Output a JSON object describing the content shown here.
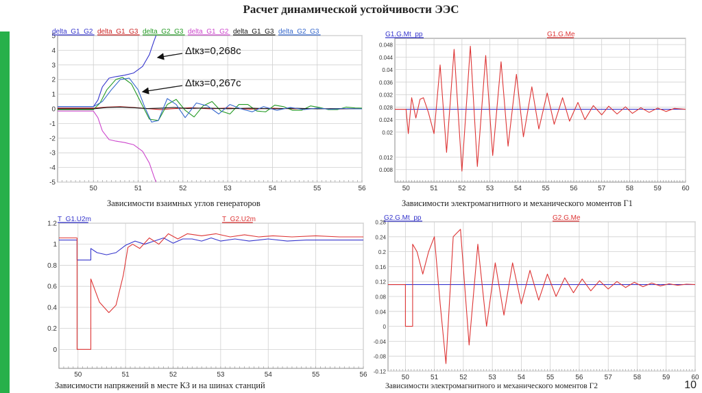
{
  "slide": {
    "title": "Расчет динамической устойчивости ЭЭС",
    "page_number": "10",
    "accent_color": "#27b04a"
  },
  "chart_data": [
    {
      "type": "line",
      "caption": "Зависимости взаимных углов генераторов",
      "xlim": [
        49.2,
        56
      ],
      "ylim": [
        -5,
        5
      ],
      "xticks": [
        50,
        51,
        52,
        53,
        54,
        55,
        56
      ],
      "yticks": [
        -5,
        -4,
        -3,
        -2,
        -1,
        0,
        1,
        2,
        3,
        4,
        5
      ],
      "grid": true,
      "legend_position": "top-left",
      "annotations": [
        "Δtкз=0,268с",
        "Δtкз=0,267с"
      ],
      "series": [
        {
          "name": "delta_G1_G2",
          "color": "#3333cc",
          "x": [
            49.2,
            50.0,
            50.1,
            50.2,
            50.35,
            50.5,
            50.7,
            50.9,
            51.1,
            51.25,
            51.35,
            51.4
          ],
          "y": [
            0.15,
            0.15,
            0.6,
            1.5,
            2.1,
            2.2,
            2.3,
            2.45,
            2.9,
            3.7,
            4.6,
            5.0
          ]
        },
        {
          "name": "delta_G1_G3",
          "color": "#cc2222",
          "x": [
            49.2,
            50.0,
            50.3,
            50.6,
            50.9,
            51.2,
            51.5,
            51.8,
            52.2,
            52.6,
            53.0,
            53.5,
            54.0,
            54.5,
            55.0,
            55.5,
            56.0
          ],
          "y": [
            0.05,
            0.05,
            0.12,
            0.15,
            0.1,
            0.02,
            -0.05,
            0.02,
            0.08,
            0.0,
            0.06,
            -0.02,
            0.04,
            0.0,
            0.03,
            -0.01,
            0.02
          ]
        },
        {
          "name": "delta_G2_G3",
          "color": "#229922",
          "x": [
            49.2,
            50.0,
            50.15,
            50.3,
            50.5,
            50.65,
            50.85,
            51.05,
            51.25,
            51.45,
            51.65,
            51.85,
            52.05,
            52.25,
            52.45,
            52.65,
            52.85,
            53.05,
            53.25,
            53.45,
            53.65,
            53.85,
            54.05,
            54.25,
            54.45,
            54.65,
            54.85,
            55.05,
            55.25,
            55.45,
            55.65,
            55.85,
            56.0
          ],
          "y": [
            -0.05,
            -0.05,
            0.4,
            1.3,
            2.0,
            2.15,
            1.7,
            0.5,
            -0.7,
            -0.8,
            0.3,
            0.65,
            -0.1,
            -0.55,
            0.2,
            0.5,
            -0.15,
            -0.35,
            0.3,
            0.3,
            -0.15,
            -0.2,
            0.25,
            0.15,
            -0.1,
            -0.1,
            0.2,
            0.1,
            -0.05,
            -0.05,
            0.12,
            0.06,
            0.05
          ]
        },
        {
          "name": "delta_G1_G2",
          "color": "#cc44cc",
          "x": [
            49.2,
            50.0,
            50.1,
            50.2,
            50.35,
            50.5,
            50.7,
            50.9,
            51.1,
            51.25,
            51.35,
            51.4
          ],
          "y": [
            -0.15,
            -0.15,
            -0.6,
            -1.5,
            -2.1,
            -2.2,
            -2.3,
            -2.45,
            -2.9,
            -3.7,
            -4.6,
            -5.0
          ]
        },
        {
          "name": "delta_G1_G3",
          "color": "#111111",
          "x": [
            49.2,
            50.0,
            50.3,
            50.6,
            50.9,
            51.2,
            51.5,
            51.8,
            52.1,
            52.5,
            53.0,
            53.5,
            54.0,
            54.5,
            55.0,
            55.5,
            56.0
          ],
          "y": [
            0.0,
            0.0,
            0.1,
            0.12,
            0.08,
            0.02,
            0.05,
            0.1,
            0.03,
            0.06,
            0.01,
            0.05,
            0.0,
            0.04,
            0.0,
            0.02,
            0.0
          ]
        },
        {
          "name": "delta_G2_G3",
          "color": "#3366cc",
          "x": [
            49.2,
            50.0,
            50.2,
            50.4,
            50.6,
            50.8,
            51.0,
            51.15,
            51.3,
            51.45,
            51.65,
            51.85,
            52.05,
            52.3,
            52.55,
            52.8,
            53.05,
            53.3,
            53.55,
            53.8,
            54.1,
            54.4,
            54.7,
            55.0,
            55.3,
            55.6,
            56.0
          ],
          "y": [
            0.15,
            0.15,
            0.5,
            1.3,
            2.0,
            2.1,
            1.3,
            0.1,
            -0.9,
            -0.8,
            0.7,
            0.3,
            -0.6,
            0.4,
            0.2,
            -0.35,
            0.3,
            0.0,
            -0.2,
            0.15,
            -0.1,
            0.1,
            -0.05,
            0.05,
            -0.03,
            0.02,
            0.0
          ]
        }
      ]
    },
    {
      "type": "line",
      "caption": "Зависимости электромагнитного и механического моментов Г1",
      "xlim": [
        49.6,
        60
      ],
      "ylim": [
        0.004,
        0.05
      ],
      "xticks": [
        50,
        51,
        52,
        53,
        54,
        55,
        56,
        57,
        58,
        59,
        60
      ],
      "yticks": [
        0.008,
        0.012,
        0.02,
        0.024,
        0.028,
        0.032,
        0.036,
        0.04,
        0.044,
        0.048
      ],
      "ytick_labels": [
        "0.008",
        "0.012",
        "0.02",
        "0.024",
        "0.028",
        "0.032",
        "0.036",
        "0.04",
        "0.044",
        "0.048"
      ],
      "grid": true,
      "legend_position": "top",
      "series": [
        {
          "name": "G1.G.Mt_pp",
          "color": "#3333cc",
          "x": [
            49.6,
            60
          ],
          "y": [
            0.0273,
            0.0273
          ]
        },
        {
          "name": "G1.G.Me",
          "color": "#dd3333",
          "x": [
            49.6,
            50.0,
            50.08,
            50.2,
            50.35,
            50.5,
            50.62,
            50.8,
            51.0,
            51.22,
            51.45,
            51.72,
            52.0,
            52.3,
            52.55,
            52.85,
            53.1,
            53.4,
            53.65,
            53.95,
            54.2,
            54.5,
            54.75,
            55.05,
            55.3,
            55.6,
            55.85,
            56.15,
            56.4,
            56.7,
            57.0,
            57.25,
            57.55,
            57.85,
            58.1,
            58.4,
            58.7,
            59.0,
            59.3,
            59.6,
            60.0
          ],
          "y": [
            0.0273,
            0.0273,
            0.0195,
            0.031,
            0.0245,
            0.0305,
            0.031,
            0.0263,
            0.0195,
            0.0415,
            0.0135,
            0.0465,
            0.0075,
            0.0475,
            0.009,
            0.0445,
            0.0125,
            0.0425,
            0.0155,
            0.0385,
            0.0185,
            0.0345,
            0.021,
            0.0325,
            0.0225,
            0.031,
            0.0235,
            0.0295,
            0.024,
            0.0285,
            0.0255,
            0.0283,
            0.0258,
            0.0281,
            0.026,
            0.0278,
            0.0263,
            0.0277,
            0.0266,
            0.0276,
            0.0273
          ]
        }
      ]
    },
    {
      "type": "line",
      "caption": "Зависимости напряжений в месте КЗ и на шинах станций",
      "xlim": [
        49.6,
        56
      ],
      "ylim": [
        -0.18,
        1.2
      ],
      "xticks": [
        50,
        51,
        52,
        53,
        54,
        55,
        56
      ],
      "yticks": [
        0,
        0.2,
        0.4,
        0.6,
        0.8,
        1,
        1.2
      ],
      "grid": true,
      "legend_position": "top",
      "series": [
        {
          "name": "T_G1.U2m",
          "color": "#3333cc",
          "x": [
            49.6,
            49.98,
            49.98,
            50.27,
            50.27,
            50.4,
            50.6,
            50.8,
            51.0,
            51.2,
            51.4,
            51.6,
            51.8,
            52.0,
            52.2,
            52.4,
            52.6,
            52.8,
            53.0,
            53.3,
            53.6,
            54.0,
            54.4,
            54.8,
            55.2,
            55.6,
            56.0
          ],
          "y": [
            1.04,
            1.04,
            0.85,
            0.85,
            0.96,
            0.92,
            0.9,
            0.92,
            0.99,
            1.03,
            1.0,
            1.03,
            1.06,
            1.01,
            1.05,
            1.05,
            1.03,
            1.06,
            1.03,
            1.05,
            1.03,
            1.05,
            1.03,
            1.04,
            1.04,
            1.04,
            1.04
          ]
        },
        {
          "name": "T_G2.U2m",
          "color": "#dd3333",
          "x": [
            49.6,
            49.98,
            49.98,
            50.27,
            50.27,
            50.45,
            50.65,
            50.8,
            50.95,
            51.05,
            51.15,
            51.3,
            51.5,
            51.7,
            51.9,
            52.1,
            52.3,
            52.6,
            52.9,
            53.2,
            53.5,
            53.8,
            54.1,
            54.5,
            55.0,
            55.5,
            56.0
          ],
          "y": [
            1.06,
            1.06,
            0.0,
            0.0,
            0.67,
            0.45,
            0.35,
            0.42,
            0.7,
            0.97,
            1.0,
            0.96,
            1.06,
            1.0,
            1.1,
            1.05,
            1.1,
            1.08,
            1.1,
            1.07,
            1.09,
            1.07,
            1.08,
            1.07,
            1.08,
            1.07,
            1.07
          ]
        }
      ]
    },
    {
      "type": "line",
      "caption": "Зависимости электромагнитного и механического моментов Г2",
      "xlim": [
        49.4,
        60
      ],
      "ylim": [
        -0.12,
        0.28
      ],
      "xticks": [
        50,
        51,
        52,
        53,
        54,
        55,
        56,
        57,
        58,
        59,
        60
      ],
      "yticks": [
        -0.12,
        -0.08,
        -0.04,
        0,
        0.04,
        0.08,
        0.12,
        0.16,
        0.2,
        0.24,
        0.28
      ],
      "ytick_labels": [
        "-0.12",
        "-0.08",
        "-0.04",
        "0",
        "0.04",
        "0.08",
        "0.12",
        "0.16",
        "0.2",
        "0.24",
        "0.28"
      ],
      "grid": true,
      "legend_position": "top",
      "series": [
        {
          "name": "G2.G.Mt_pp",
          "color": "#3333cc",
          "x": [
            49.4,
            60
          ],
          "y": [
            0.112,
            0.112
          ]
        },
        {
          "name": "G2.G.Me",
          "color": "#dd3333",
          "x": [
            49.4,
            50.0,
            50.0,
            50.25,
            50.25,
            50.4,
            50.6,
            50.8,
            51.0,
            51.2,
            51.4,
            51.65,
            51.9,
            52.2,
            52.5,
            52.8,
            53.1,
            53.4,
            53.7,
            54.0,
            54.3,
            54.6,
            54.9,
            55.2,
            55.5,
            55.8,
            56.1,
            56.4,
            56.7,
            57.0,
            57.3,
            57.6,
            57.9,
            58.2,
            58.5,
            58.8,
            59.1,
            59.4,
            59.7,
            60.0
          ],
          "y": [
            0.112,
            0.112,
            0.0,
            0.0,
            0.22,
            0.2,
            0.14,
            0.2,
            0.24,
            0.06,
            -0.1,
            0.24,
            0.26,
            -0.05,
            0.22,
            0.0,
            0.17,
            0.03,
            0.17,
            0.06,
            0.15,
            0.07,
            0.14,
            0.08,
            0.13,
            0.09,
            0.127,
            0.095,
            0.122,
            0.1,
            0.12,
            0.104,
            0.118,
            0.106,
            0.116,
            0.108,
            0.114,
            0.11,
            0.113,
            0.112
          ]
        }
      ]
    }
  ]
}
